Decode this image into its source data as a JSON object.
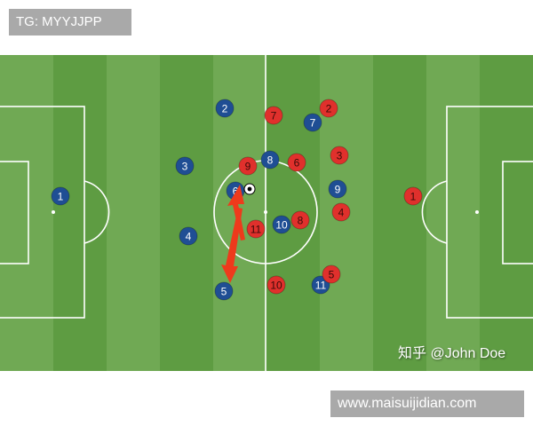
{
  "watermark_top": "TG: MYYJJPP",
  "watermark_bottom": "www.maisuijidian.com",
  "credit": "知乎 @John Doe",
  "colors": {
    "pitch_light": "#70a954",
    "pitch_dark": "#5e9c42",
    "blue_team": "#1f4e94",
    "red_team": "#e0302c",
    "arrow": "#ee3a1c"
  },
  "blue_players": [
    "1",
    "2",
    "3",
    "4",
    "5",
    "6",
    "7",
    "8",
    "9",
    "10",
    "11"
  ],
  "red_players": [
    "1",
    "2",
    "3",
    "4",
    "5",
    "6",
    "7",
    "8",
    "9",
    "10",
    "11"
  ],
  "icons": {
    "ball": "soccer-ball-icon",
    "arrows": "pass-arrow"
  }
}
